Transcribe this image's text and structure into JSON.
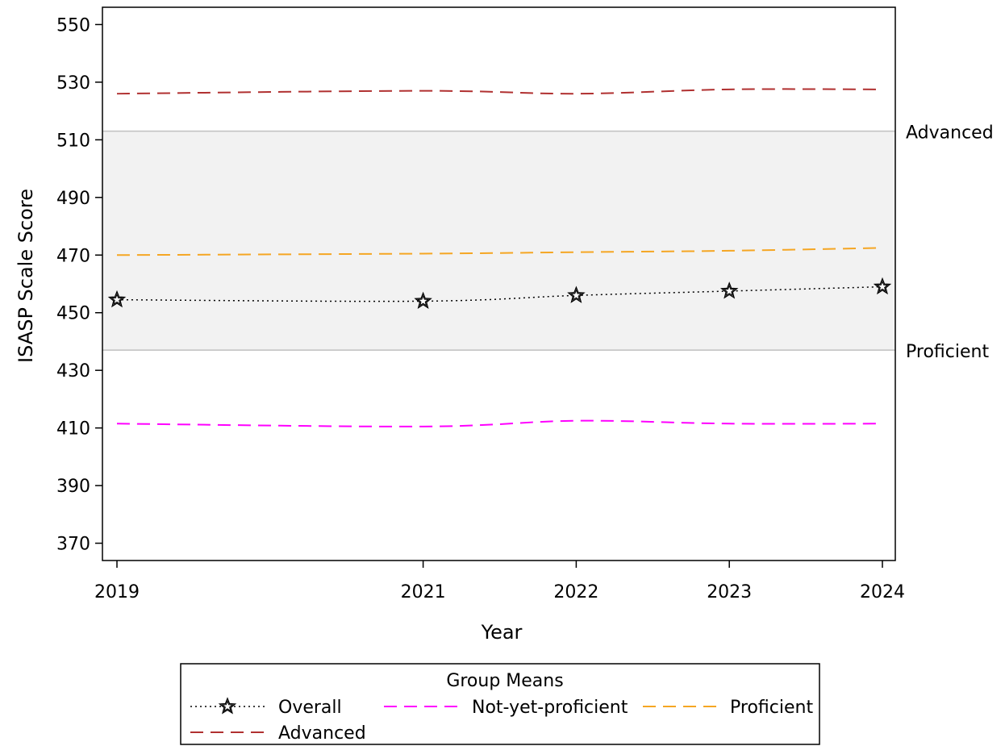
{
  "chart_data": {
    "type": "line",
    "title": "",
    "xlabel": "Year",
    "ylabel": "ISASP Scale Score",
    "x": [
      2019,
      2021,
      2022,
      2023,
      2024
    ],
    "xlim": [
      2019,
      2024
    ],
    "xticks": [
      "2019",
      "2021",
      "2022",
      "2023",
      "2024"
    ],
    "ylim": [
      364,
      556
    ],
    "yticks": [
      370,
      390,
      410,
      430,
      450,
      470,
      490,
      510,
      530,
      550
    ],
    "grid": false,
    "band": {
      "from": 437,
      "to": 513,
      "color": "#f2f2f2"
    },
    "reference_lines": [
      {
        "label": "Advanced",
        "value": 513,
        "color": "#c0c0c0"
      },
      {
        "label": "Proficient",
        "value": 437,
        "color": "#c0c0c0"
      }
    ],
    "series": [
      {
        "name": "Overall",
        "values": [
          454.5,
          454,
          456,
          457.5,
          459
        ],
        "color": "#000000",
        "style": "dotted",
        "marker": "star"
      },
      {
        "name": "Not-yet-proficient",
        "values": [
          411.5,
          410.5,
          412.5,
          411.5,
          411.5
        ],
        "color": "#ff00ff",
        "style": "dashed"
      },
      {
        "name": "Proficient",
        "values": [
          470,
          470.5,
          471,
          471.5,
          472.5
        ],
        "color": "#f5a623",
        "style": "dashed"
      },
      {
        "name": "Advanced",
        "values": [
          526,
          527,
          526,
          527.5,
          527.5
        ],
        "color": "#b03030",
        "style": "dashed"
      }
    ],
    "legend": {
      "title": "Group Means",
      "placement": "bottom-center"
    }
  }
}
